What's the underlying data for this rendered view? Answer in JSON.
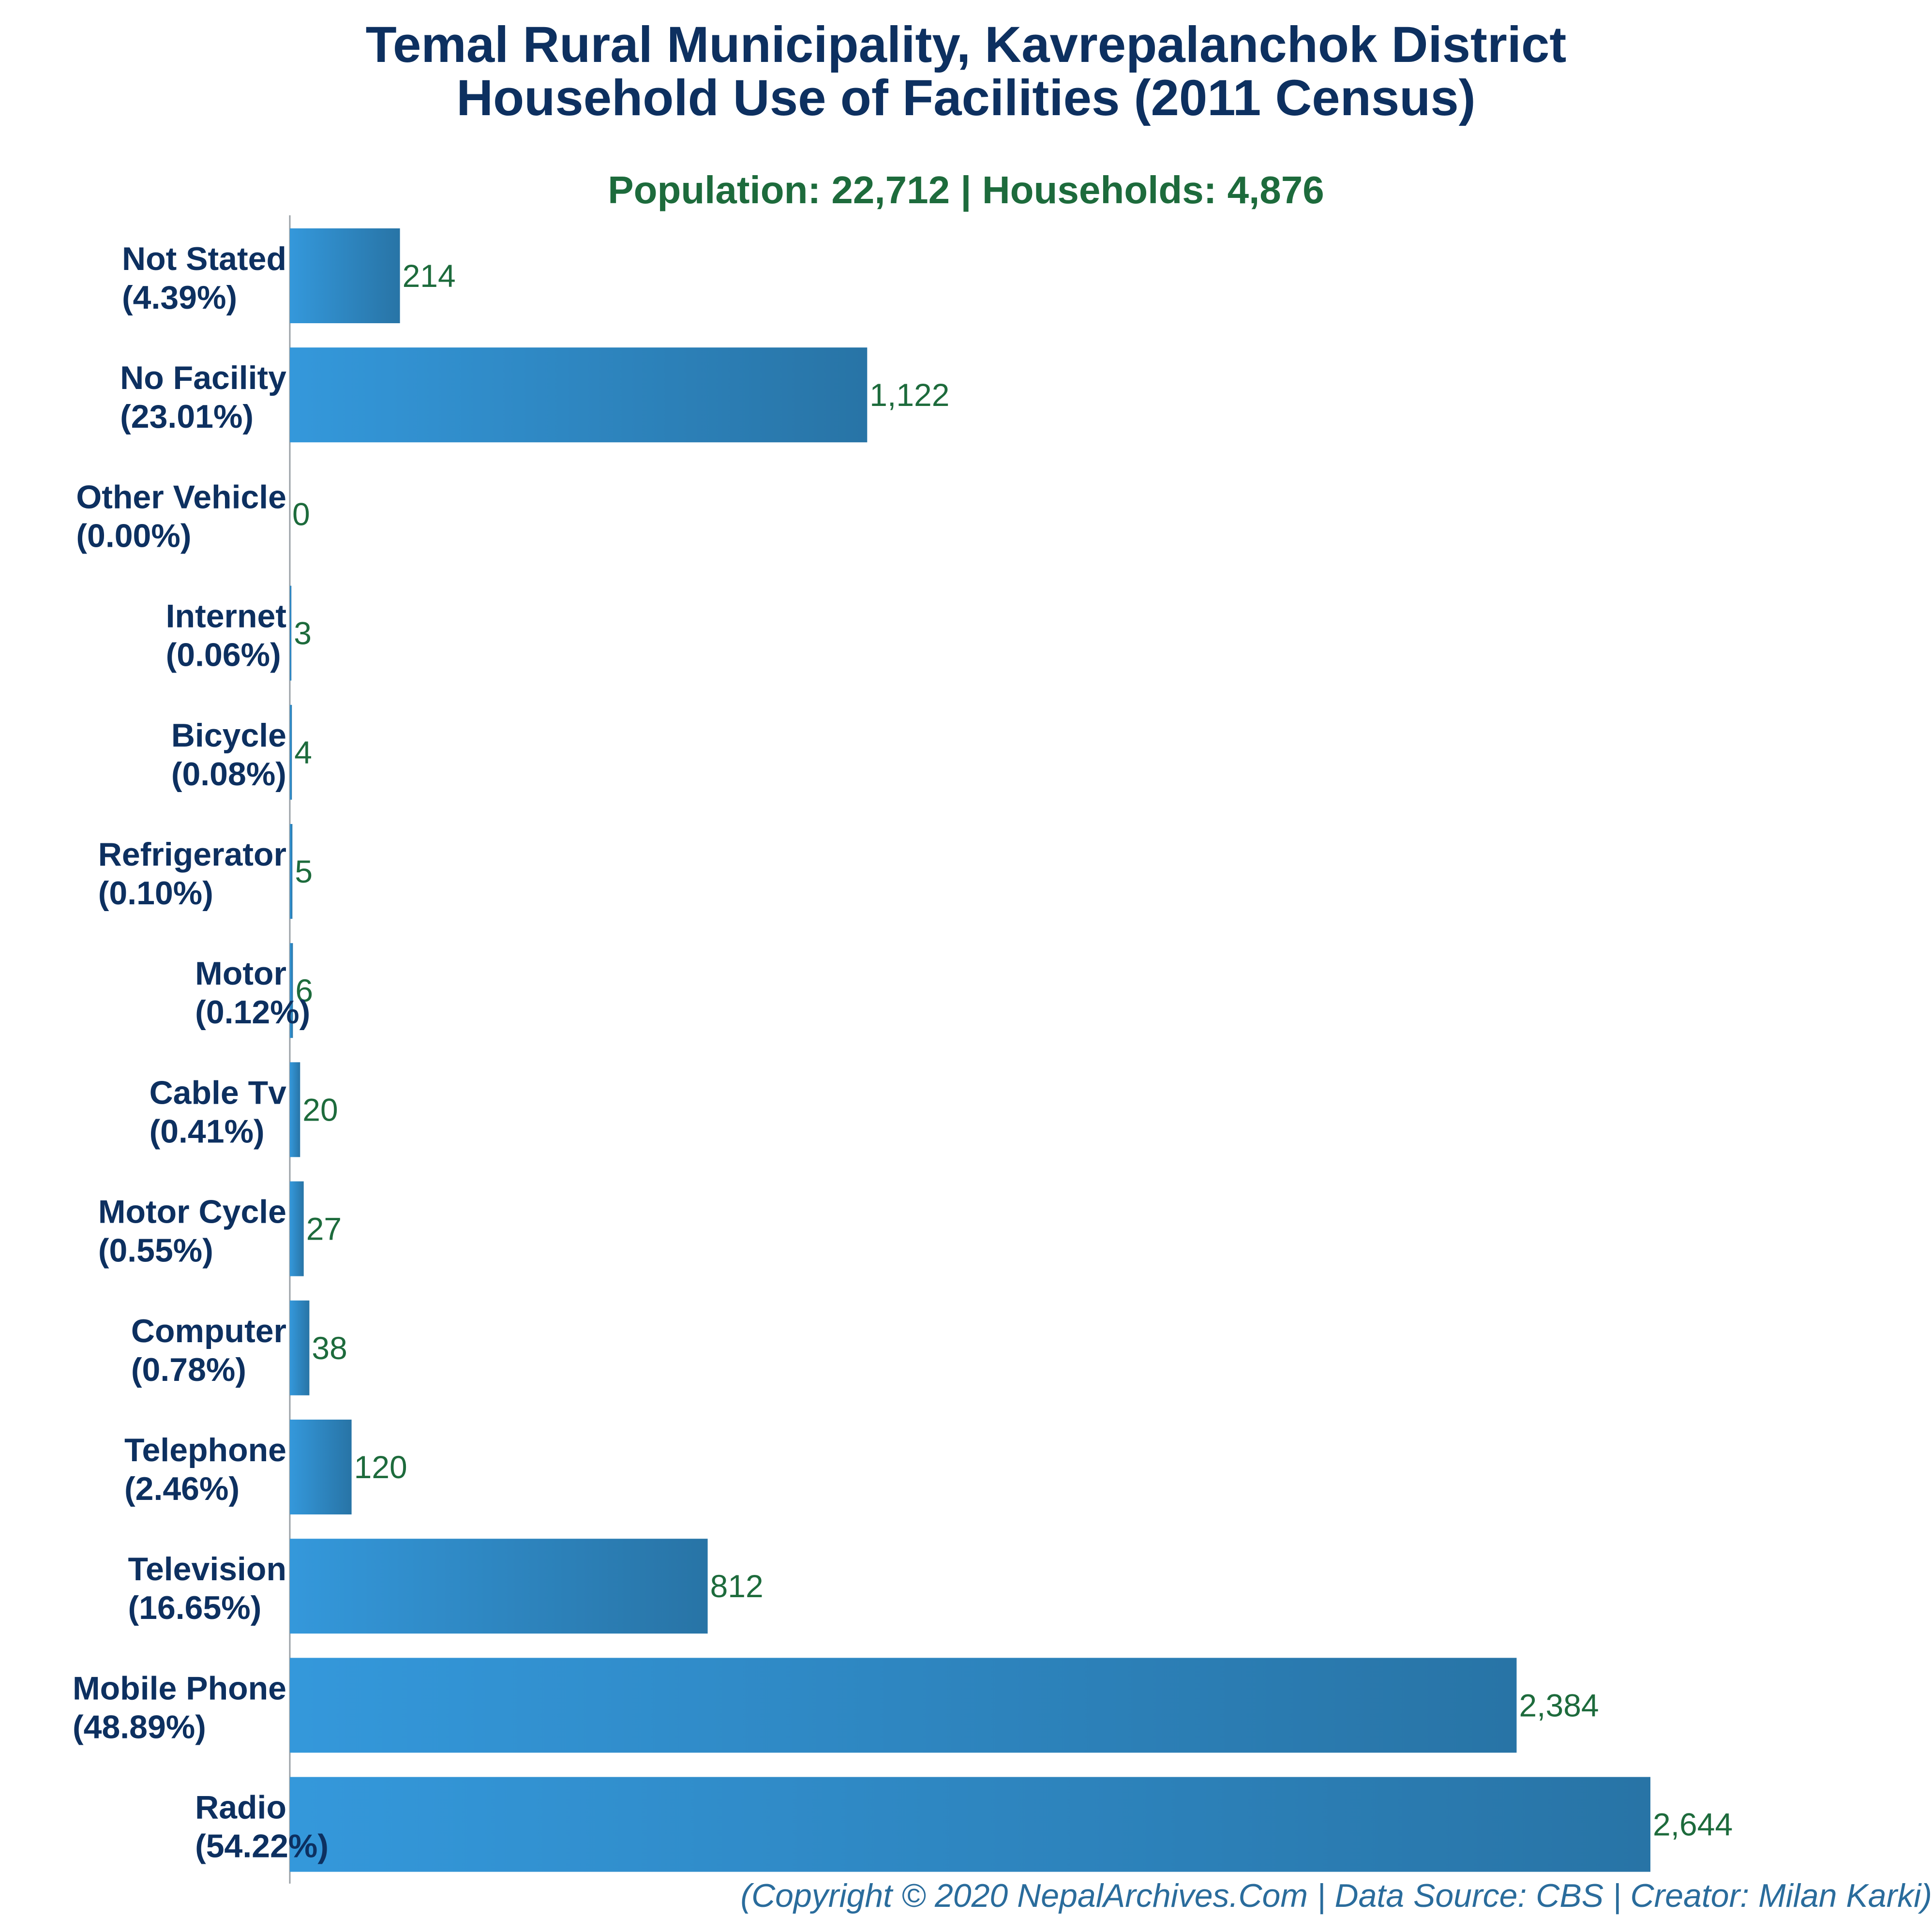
{
  "header": {
    "title_line1": "Temal Rural Municipality, Kavrepalanchok District",
    "title_line2": "Household Use of Facilities (2011 Census)",
    "subtitle": "Population: 22,712 | Households: 4,876"
  },
  "footer": {
    "text": "(Copyright © 2020 NepalArchives.Com | Data Source: CBS | Creator: Milan Karki)"
  },
  "colors": {
    "bar_light": "#3498db",
    "bar_dark": "#2874a6",
    "title": "#0d3060",
    "value_label": "#1d6b3c",
    "subtitle": "#1d6b3c"
  },
  "chart_data": {
    "type": "bar",
    "orientation": "horizontal",
    "title": "Temal Rural Municipality, Kavrepalanchok District Household Use of Facilities (2011 Census)",
    "subtitle": "Population: 22,712 | Households: 4,876",
    "xlabel": "",
    "ylabel": "",
    "grid": false,
    "legend": "none",
    "categories": [
      "Not Stated",
      "No Facility",
      "Other Vehicle",
      "Internet",
      "Bicycle",
      "Refrigerator",
      "Motor",
      "Cable Tv",
      "Motor Cycle",
      "Computer",
      "Telephone",
      "Television",
      "Mobile Phone",
      "Radio"
    ],
    "percent_labels": [
      "(4.39%)",
      "(23.01%)",
      "(0.00%)",
      "(0.06%)",
      "(0.08%)",
      "(0.10%)",
      "(0.12%)",
      "(0.41%)",
      "(0.55%)",
      "(0.78%)",
      "(2.46%)",
      "(16.65%)",
      "(48.89%)",
      "(54.22%)"
    ],
    "values": [
      214,
      1122,
      0,
      3,
      4,
      5,
      6,
      20,
      27,
      38,
      120,
      812,
      2384,
      2644
    ],
    "value_labels": [
      "214",
      "1,122",
      "0",
      "3",
      "4",
      "5",
      "6",
      "20",
      "27",
      "38",
      "120",
      "812",
      "2,384",
      "2,644"
    ]
  }
}
